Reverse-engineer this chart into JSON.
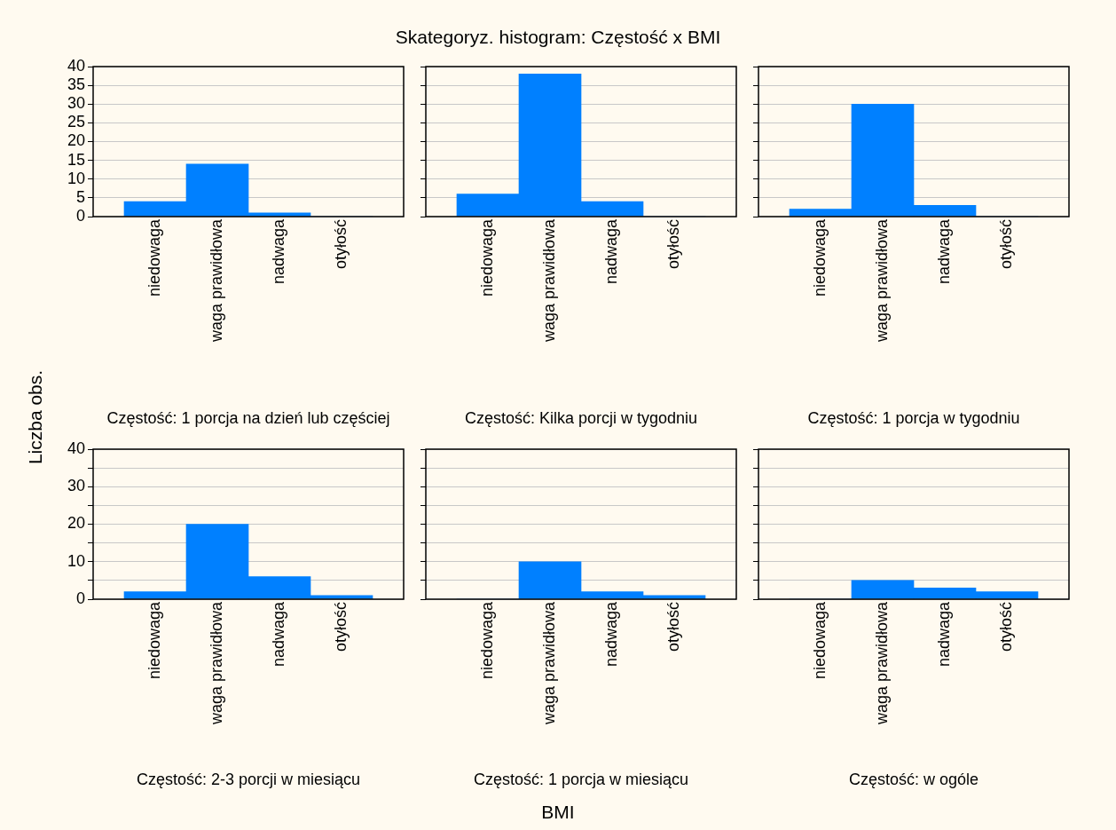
{
  "chart_data": [
    {
      "type": "bar",
      "xlabel": "Częstość: 1 porcja na dzień lub częściej",
      "categories": [
        "niedowaga",
        "waga prawidłowa",
        "nadwaga",
        "otyłość"
      ],
      "values": [
        4,
        14,
        1,
        0
      ],
      "color": "#0080ff",
      "ylim": [
        0,
        40
      ],
      "yticks": [
        0,
        5,
        10,
        15,
        20,
        25,
        30,
        35,
        40
      ],
      "grid": "y"
    },
    {
      "type": "bar",
      "title": "Skategoryz. histogram: Częstość x BMI",
      "xlabel": "Częstość: Kilka porcji w tygodniu",
      "categories": [
        "niedowaga",
        "waga prawidłowa",
        "nadwaga",
        "otyłość"
      ],
      "values": [
        6,
        38,
        4,
        0
      ],
      "color": "#0080ff",
      "ylim": [
        0,
        40
      ],
      "yticks": [
        0,
        5,
        10,
        15,
        20,
        25,
        30,
        35,
        40
      ],
      "grid": "y",
      "tick_labels": "x"
    },
    {
      "type": "bar",
      "xlabel": "Częstość: 1 porcja w tygodniu",
      "categories": [
        "niedowaga",
        "waga prawidłowa",
        "nadwaga",
        "otyłość"
      ],
      "values": [
        2,
        30,
        3,
        0
      ],
      "color": "#0080ff",
      "ylim": [
        0,
        40
      ],
      "yticks": [
        0,
        5,
        10,
        15,
        20,
        25,
        30,
        35,
        40
      ],
      "grid": "y",
      "tick_labels": "x"
    },
    {
      "type": "bar",
      "ylabel": "Liczba obs.",
      "xlabel": "Częstość: 2-3 porcji w miesiącu",
      "categories": [
        "niedowaga",
        "waga prawidłowa",
        "nadwaga",
        "otyłość"
      ],
      "values": [
        2,
        20,
        6,
        1
      ],
      "color": "#0080ff",
      "ylim": [
        0,
        40
      ],
      "yticks": [
        0,
        {
          "value": 5,
          "label": null
        },
        10,
        {
          "value": 15,
          "label": null
        },
        20,
        {
          "value": 25,
          "label": null
        },
        30,
        {
          "value": 35,
          "label": null
        },
        40
      ],
      "grid": "y"
    },
    {
      "type": "bar",
      "annotations": [
        "BMI"
      ],
      "xlabel": "Częstość: 1 porcja w miesiącu",
      "categories": [
        "niedowaga",
        "waga prawidłowa",
        "nadwaga",
        "otyłość"
      ],
      "values": [
        0,
        10,
        2,
        1
      ],
      "color": "#0080ff",
      "ylim": [
        0,
        40
      ],
      "yticks": [
        0,
        {
          "value": 5,
          "label": null
        },
        10,
        {
          "value": 15,
          "label": null
        },
        20,
        {
          "value": 25,
          "label": null
        },
        30,
        {
          "value": 35,
          "label": null
        },
        40
      ],
      "grid": "y",
      "tick_labels": "x"
    },
    {
      "type": "bar",
      "xlabel": "Częstość: w ogóle",
      "categories": [
        "niedowaga",
        "waga prawidłowa",
        "nadwaga",
        "otyłość"
      ],
      "values": [
        0,
        5,
        3,
        2
      ],
      "color": "#0080ff",
      "ylim": [
        0,
        40
      ],
      "yticks": [
        0,
        {
          "value": 5,
          "label": null
        },
        10,
        {
          "value": 15,
          "label": null
        },
        20,
        {
          "value": 25,
          "label": null
        },
        30,
        {
          "value": 35,
          "label": null
        },
        40
      ],
      "grid": "y",
      "tick_labels": "x"
    }
  ]
}
